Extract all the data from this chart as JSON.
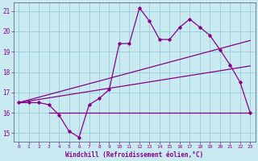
{
  "xlabel": "Windchill (Refroidissement éolien,°C)",
  "background_color": "#c8eaf0",
  "plot_bg_color": "#c8eaf0",
  "grid_color": "#99ccd9",
  "line_color": "#880088",
  "xlim": [
    -0.5,
    23.5
  ],
  "ylim": [
    14.6,
    21.4
  ],
  "yticks": [
    15,
    16,
    17,
    18,
    19,
    20,
    21
  ],
  "xticks": [
    0,
    1,
    2,
    3,
    4,
    5,
    6,
    7,
    8,
    9,
    10,
    11,
    12,
    13,
    14,
    15,
    16,
    17,
    18,
    19,
    20,
    21,
    22,
    23
  ],
  "main_series_x": [
    0,
    1,
    2,
    3,
    4,
    5,
    6,
    7,
    8,
    9,
    10,
    11,
    12,
    13,
    14,
    15,
    16,
    17,
    18,
    19,
    20,
    21,
    22,
    23
  ],
  "main_series_y": [
    16.5,
    16.5,
    16.5,
    16.4,
    15.9,
    15.1,
    14.8,
    16.4,
    16.7,
    17.15,
    19.4,
    19.4,
    21.15,
    20.5,
    19.6,
    19.6,
    20.2,
    20.6,
    20.2,
    19.8,
    19.1,
    18.35,
    17.5,
    16.0
  ],
  "upper_line_x": [
    0,
    23
  ],
  "upper_line_y": [
    16.5,
    19.55
  ],
  "mid_line_x": [
    0,
    23
  ],
  "mid_line_y": [
    16.5,
    18.3
  ],
  "flat_line_x": [
    3,
    23
  ],
  "flat_line_y": [
    16.0,
    16.0
  ]
}
